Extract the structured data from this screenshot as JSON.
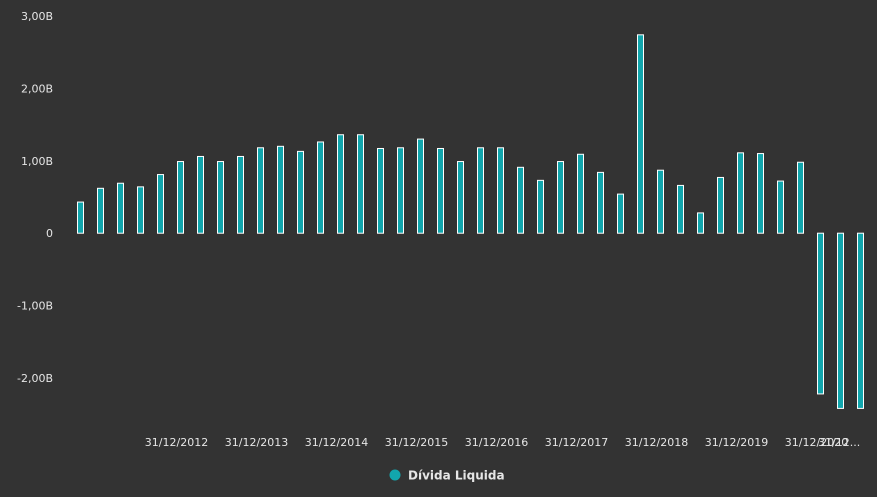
{
  "chart_data": {
    "type": "bar",
    "background": "#333333",
    "bar_fill": "#12a6ad",
    "bar_stroke": "#ffffff",
    "text_color": "#e6e6e6",
    "ylim": [
      -2.0,
      3.0
    ],
    "y_ticks": [
      {
        "value": 3.0,
        "label": "3,00B"
      },
      {
        "value": 2.0,
        "label": "2,00B"
      },
      {
        "value": 1.0,
        "label": "1,00B"
      },
      {
        "value": 0,
        "label": "0"
      },
      {
        "value": -1.0,
        "label": "-1,00B"
      },
      {
        "value": -2.0,
        "label": "-2,00B"
      }
    ],
    "x_tick_labels": [
      {
        "index": 5,
        "label": "31/12/2012"
      },
      {
        "index": 9,
        "label": "31/12/2013"
      },
      {
        "index": 13,
        "label": "31/12/2014"
      },
      {
        "index": 17,
        "label": "31/12/2015"
      },
      {
        "index": 21,
        "label": "31/12/2016"
      },
      {
        "index": 25,
        "label": "31/12/2017"
      },
      {
        "index": 29,
        "label": "31/12/2018"
      },
      {
        "index": 33,
        "label": "31/12/2019"
      },
      {
        "index": 37,
        "label": "31/12/2020"
      },
      {
        "index": 39,
        "label": "31/12..."
      }
    ],
    "legend_position": "bottom-center",
    "grid": false,
    "series": [
      {
        "name": "Dívida Liquida",
        "values": [
          0.43,
          0.62,
          0.69,
          0.64,
          0.81,
          0.99,
          1.06,
          0.99,
          1.06,
          1.18,
          1.2,
          1.13,
          1.26,
          1.36,
          1.36,
          1.17,
          1.18,
          1.3,
          1.17,
          0.99,
          1.18,
          1.18,
          0.91,
          0.73,
          0.99,
          1.09,
          0.84,
          0.54,
          2.74,
          0.87,
          0.66,
          0.28,
          0.77,
          1.11,
          1.1,
          0.72,
          0.98,
          -2.22,
          -2.42,
          -2.42
        ]
      }
    ]
  }
}
